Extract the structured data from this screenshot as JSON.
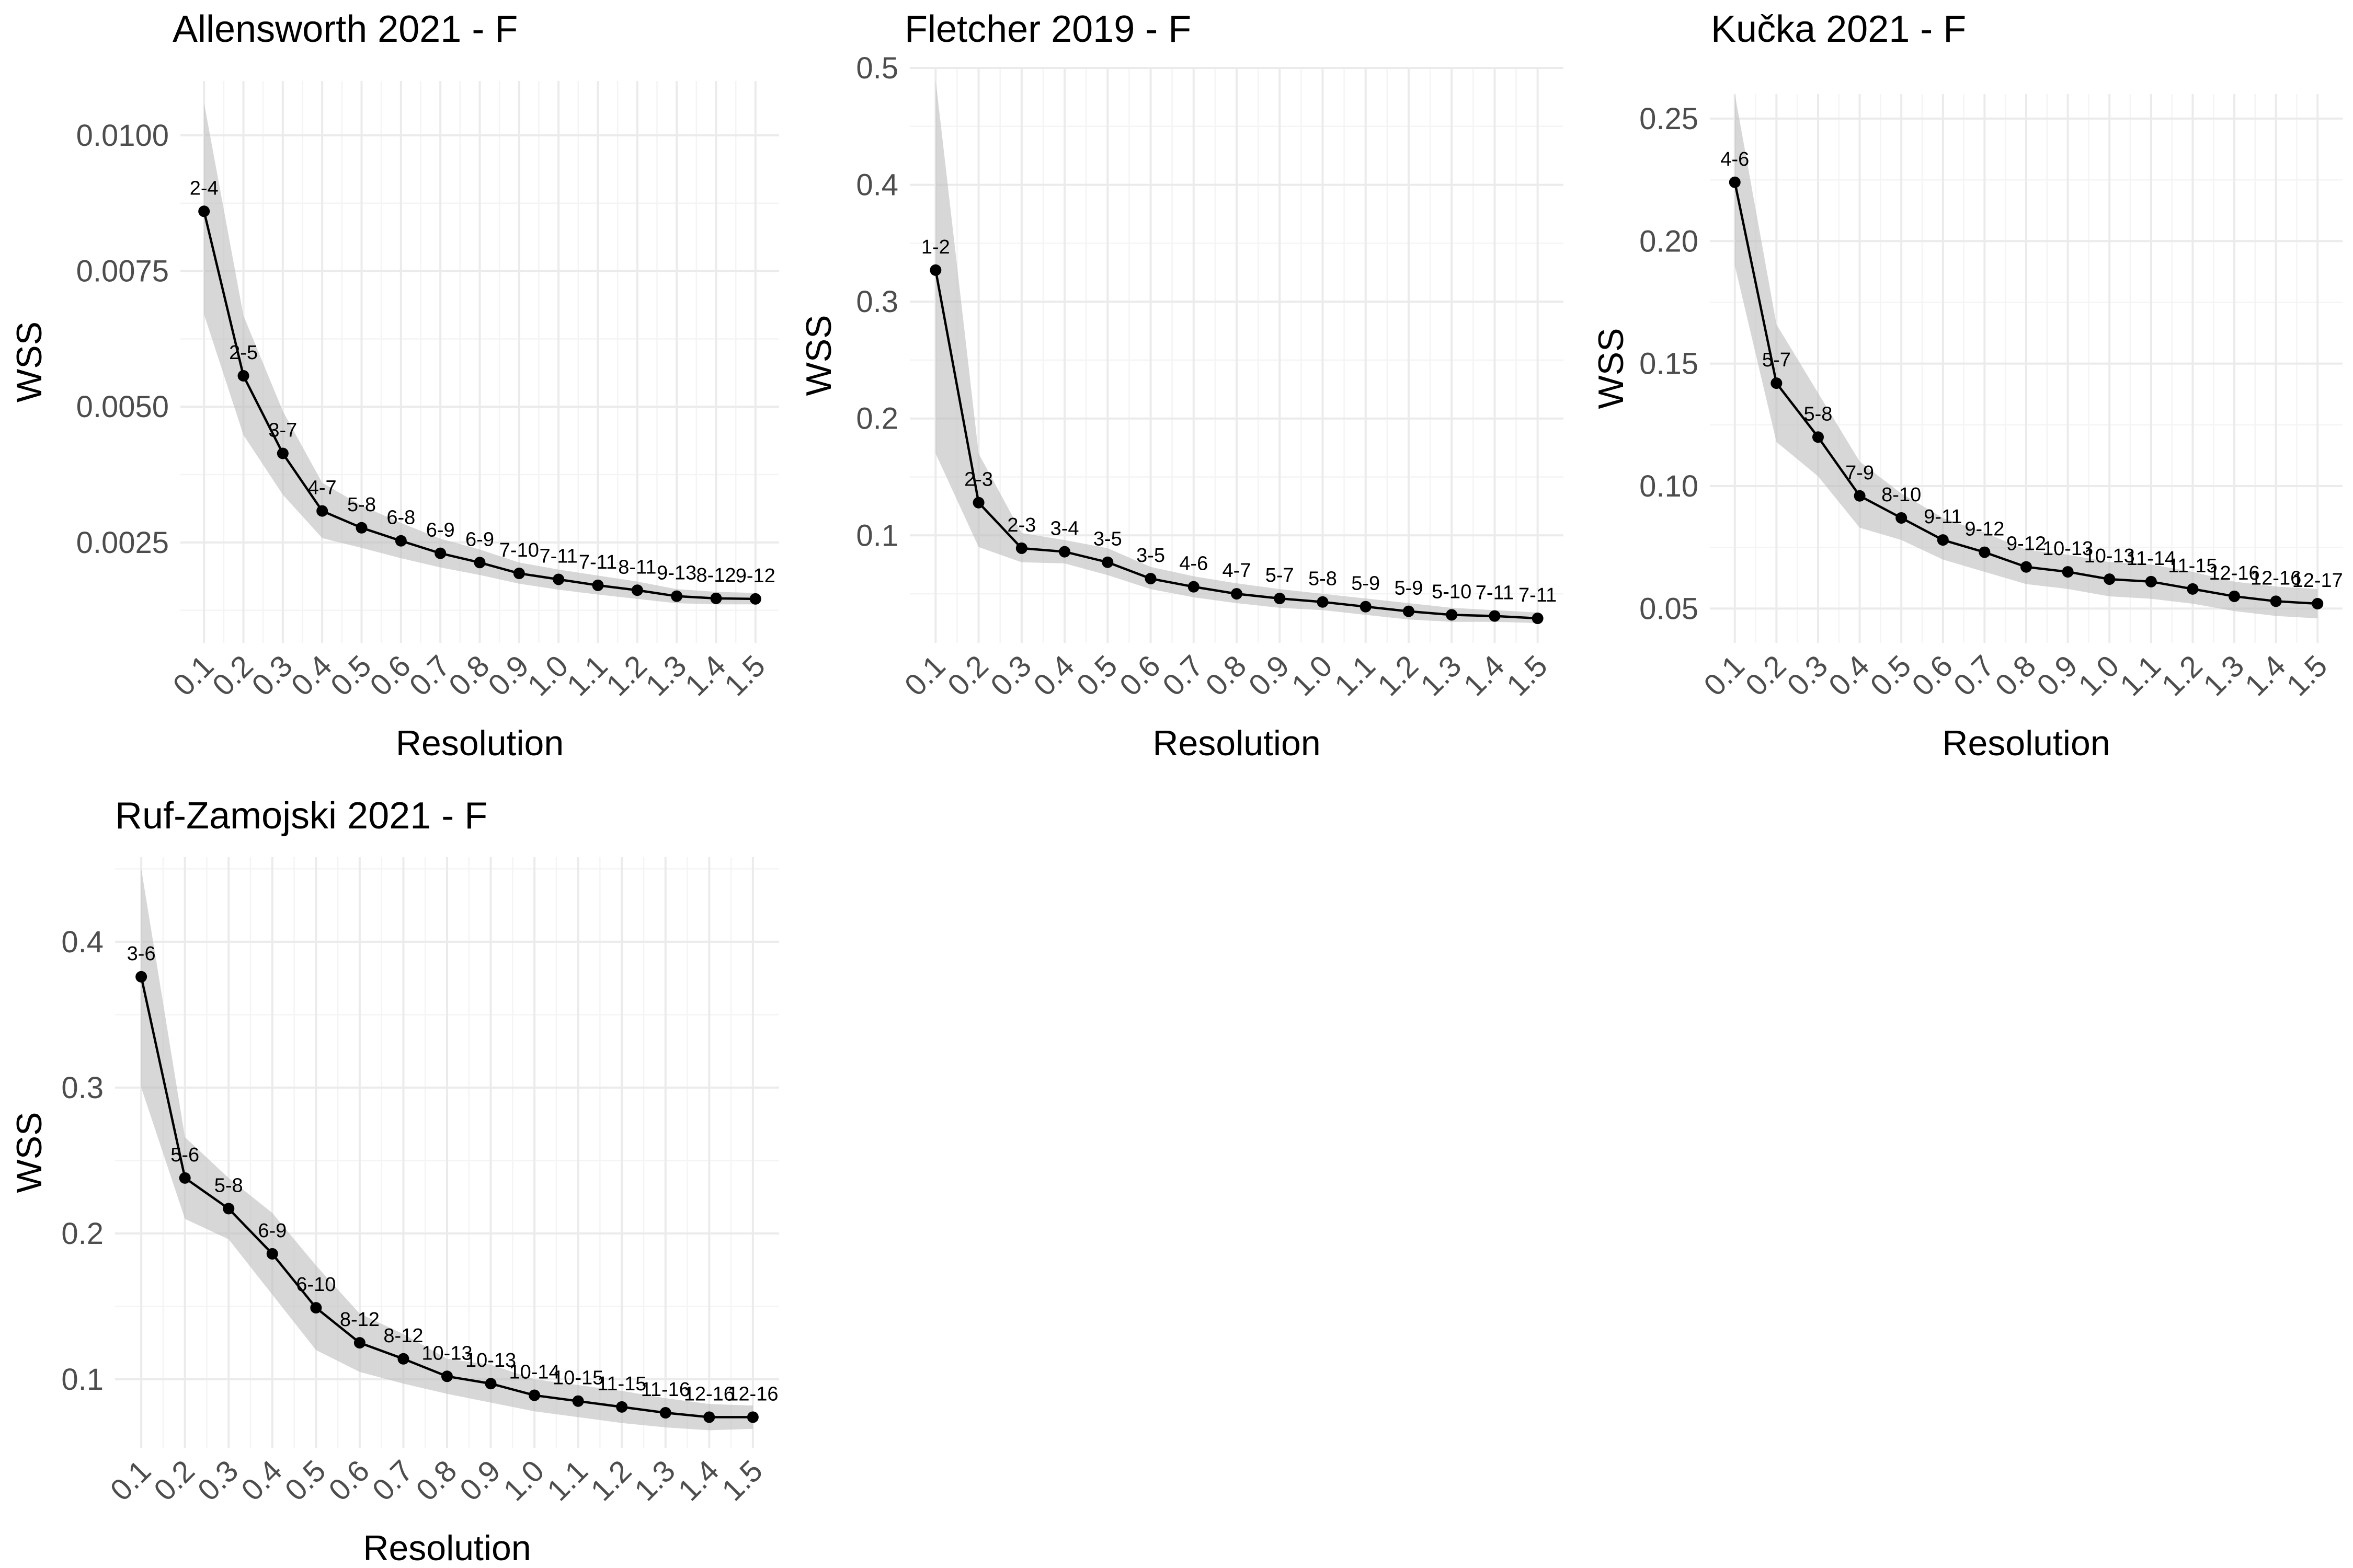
{
  "chart_data": [
    {
      "type": "line",
      "title": "Allensworth 2021 - F",
      "xlabel": "Resolution",
      "ylabel": "WSS",
      "x": [
        "0.1",
        "0.2",
        "0.3",
        "0.4",
        "0.5",
        "0.6",
        "0.7",
        "0.8",
        "0.9",
        "1.0",
        "1.1",
        "1.2",
        "1.3",
        "1.4",
        "1.5"
      ],
      "y": [
        0.0086,
        0.00557,
        0.00414,
        0.00308,
        0.00277,
        0.00253,
        0.0023,
        0.00213,
        0.00193,
        0.00182,
        0.00171,
        0.00162,
        0.00151,
        0.00147,
        0.00146
      ],
      "lower": [
        0.0067,
        0.00448,
        0.00338,
        0.00258,
        0.0024,
        0.00221,
        0.00204,
        0.0019,
        0.00174,
        0.00163,
        0.00154,
        0.00146,
        0.00138,
        0.00136,
        0.00136
      ],
      "upper": [
        0.0106,
        0.00668,
        0.00492,
        0.0036,
        0.00318,
        0.00286,
        0.00257,
        0.00237,
        0.00213,
        0.002,
        0.00189,
        0.00178,
        0.00164,
        0.00159,
        0.00157
      ],
      "point_labels": [
        "2-4",
        "2-5",
        "3-7",
        "4-7",
        "5-8",
        "6-8",
        "6-9",
        "6-9",
        "7-10",
        "7-11",
        "7-11",
        "8-11",
        "9-13",
        "8-12",
        "9-12"
      ],
      "yticks": [
        0.0025,
        0.005,
        0.0075,
        0.01
      ],
      "ytick_labels": [
        "0.0025",
        "0.0050",
        "0.0075",
        "0.0100"
      ],
      "ylim": [
        0.00065,
        0.011
      ],
      "grid": true
    },
    {
      "type": "line",
      "title": "Fletcher 2019 - F",
      "xlabel": "Resolution",
      "ylabel": "WSS",
      "x": [
        "0.1",
        "0.2",
        "0.3",
        "0.4",
        "0.5",
        "0.6",
        "0.7",
        "0.8",
        "0.9",
        "1.0",
        "1.1",
        "1.2",
        "1.3",
        "1.4",
        "1.5"
      ],
      "y": [
        0.327,
        0.128,
        0.089,
        0.086,
        0.077,
        0.063,
        0.056,
        0.05,
        0.046,
        0.043,
        0.039,
        0.035,
        0.032,
        0.031,
        0.029
      ],
      "lower": [
        0.17,
        0.09,
        0.077,
        0.076,
        0.066,
        0.054,
        0.047,
        0.042,
        0.038,
        0.036,
        0.032,
        0.028,
        0.026,
        0.026,
        0.025
      ],
      "upper": [
        0.49,
        0.17,
        0.102,
        0.096,
        0.089,
        0.073,
        0.065,
        0.059,
        0.054,
        0.05,
        0.046,
        0.042,
        0.038,
        0.036,
        0.034
      ],
      "point_labels": [
        "1-2",
        "2-3",
        "2-3",
        "3-4",
        "3-5",
        "3-5",
        "4-6",
        "4-7",
        "5-7",
        "5-8",
        "5-9",
        "5-9",
        "5-10",
        "7-11",
        "7-11"
      ],
      "yticks": [
        0.1,
        0.2,
        0.3,
        0.4,
        0.5
      ],
      "ytick_labels": [
        "0.1",
        "0.2",
        "0.3",
        "0.4",
        "0.5"
      ],
      "ylim": [
        0.008,
        0.5
      ],
      "grid": true
    },
    {
      "type": "line",
      "title": "Kučka 2021 - F",
      "xlabel": "Resolution",
      "ylabel": "WSS",
      "x": [
        "0.1",
        "0.2",
        "0.3",
        "0.4",
        "0.5",
        "0.6",
        "0.7",
        "0.8",
        "0.9",
        "1.0",
        "1.1",
        "1.2",
        "1.3",
        "1.4",
        "1.5"
      ],
      "y": [
        0.224,
        0.142,
        0.12,
        0.096,
        0.087,
        0.078,
        0.073,
        0.067,
        0.065,
        0.062,
        0.061,
        0.058,
        0.055,
        0.053,
        0.052
      ],
      "lower": [
        0.19,
        0.118,
        0.104,
        0.083,
        0.078,
        0.07,
        0.065,
        0.06,
        0.058,
        0.055,
        0.054,
        0.052,
        0.049,
        0.047,
        0.046
      ],
      "upper": [
        0.26,
        0.166,
        0.138,
        0.11,
        0.097,
        0.087,
        0.081,
        0.074,
        0.072,
        0.069,
        0.068,
        0.065,
        0.061,
        0.059,
        0.058
      ],
      "point_labels": [
        "4-6",
        "5-7",
        "5-8",
        "7-9",
        "8-10",
        "9-11",
        "9-12",
        "9-12",
        "10-13",
        "10-13",
        "11-14",
        "11-15",
        "12-16",
        "12-16",
        "12-17"
      ],
      "yticks": [
        0.05,
        0.1,
        0.15,
        0.2,
        0.25
      ],
      "ytick_labels": [
        "0.05",
        "0.10",
        "0.15",
        "0.20",
        "0.25"
      ],
      "ylim": [
        0.036,
        0.26
      ],
      "grid": true
    },
    {
      "type": "line",
      "title": "Ruf-Zamojski 2021 - F",
      "xlabel": "Resolution",
      "ylabel": "WSS",
      "x": [
        "0.1",
        "0.2",
        "0.3",
        "0.4",
        "0.5",
        "0.6",
        "0.7",
        "0.8",
        "0.9",
        "1.0",
        "1.1",
        "1.2",
        "1.3",
        "1.4",
        "1.5"
      ],
      "y": [
        0.376,
        0.238,
        0.217,
        0.186,
        0.149,
        0.125,
        0.114,
        0.102,
        0.097,
        0.089,
        0.085,
        0.081,
        0.077,
        0.074,
        0.074
      ],
      "lower": [
        0.3,
        0.21,
        0.196,
        0.158,
        0.12,
        0.105,
        0.097,
        0.09,
        0.084,
        0.078,
        0.074,
        0.07,
        0.067,
        0.065,
        0.066
      ],
      "upper": [
        0.45,
        0.266,
        0.238,
        0.214,
        0.178,
        0.145,
        0.131,
        0.114,
        0.11,
        0.1,
        0.096,
        0.092,
        0.087,
        0.083,
        0.082
      ],
      "point_labels": [
        "3-6",
        "5-6",
        "5-8",
        "6-9",
        "6-10",
        "8-12",
        "8-12",
        "10-13",
        "10-13",
        "10-14",
        "10-15",
        "11-15",
        "11-16",
        "12-16",
        "12-16"
      ],
      "yticks": [
        0.1,
        0.2,
        0.3,
        0.4
      ],
      "ytick_labels": [
        "0.1",
        "0.2",
        "0.3",
        "0.4"
      ],
      "ylim": [
        0.053,
        0.458
      ],
      "grid": true
    }
  ]
}
